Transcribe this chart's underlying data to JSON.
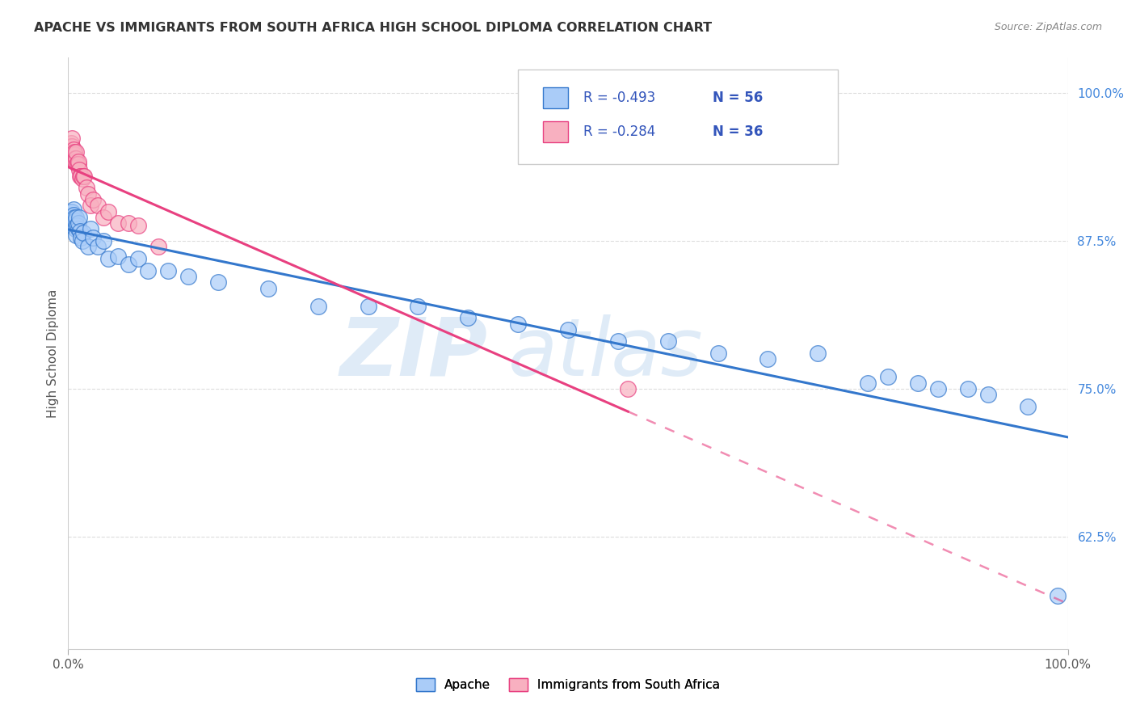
{
  "title": "APACHE VS IMMIGRANTS FROM SOUTH AFRICA HIGH SCHOOL DIPLOMA CORRELATION CHART",
  "source": "Source: ZipAtlas.com",
  "ylabel": "High School Diploma",
  "ytick_labels": [
    "100.0%",
    "87.5%",
    "75.0%",
    "62.5%"
  ],
  "ytick_values": [
    1.0,
    0.875,
    0.75,
    0.625
  ],
  "legend_label1": "Apache",
  "legend_label2": "Immigrants from South Africa",
  "legend_R1": "-0.493",
  "legend_N1": "56",
  "legend_R2": "-0.284",
  "legend_N2": "36",
  "color_apache": "#aaccf8",
  "color_sa": "#f8b0c0",
  "color_apache_line": "#3377cc",
  "color_sa_line": "#e84080",
  "watermark_zip": "ZIP",
  "watermark_atlas": "atlas",
  "apache_x": [
    0.001,
    0.002,
    0.002,
    0.003,
    0.003,
    0.004,
    0.004,
    0.005,
    0.005,
    0.006,
    0.006,
    0.007,
    0.007,
    0.008,
    0.008,
    0.009,
    0.01,
    0.01,
    0.011,
    0.012,
    0.013,
    0.014,
    0.015,
    0.02,
    0.022,
    0.025,
    0.03,
    0.035,
    0.04,
    0.05,
    0.06,
    0.07,
    0.08,
    0.1,
    0.12,
    0.15,
    0.2,
    0.25,
    0.3,
    0.35,
    0.4,
    0.45,
    0.5,
    0.55,
    0.6,
    0.65,
    0.7,
    0.75,
    0.8,
    0.82,
    0.85,
    0.87,
    0.9,
    0.92,
    0.96,
    0.99
  ],
  "apache_y": [
    0.895,
    0.89,
    0.9,
    0.893,
    0.888,
    0.895,
    0.9,
    0.902,
    0.897,
    0.89,
    0.895,
    0.885,
    0.892,
    0.88,
    0.895,
    0.888,
    0.885,
    0.89,
    0.895,
    0.883,
    0.878,
    0.875,
    0.882,
    0.87,
    0.885,
    0.878,
    0.87,
    0.875,
    0.86,
    0.862,
    0.855,
    0.86,
    0.85,
    0.85,
    0.845,
    0.84,
    0.835,
    0.82,
    0.82,
    0.82,
    0.81,
    0.805,
    0.8,
    0.79,
    0.79,
    0.78,
    0.775,
    0.78,
    0.755,
    0.76,
    0.755,
    0.75,
    0.75,
    0.745,
    0.735,
    0.575
  ],
  "sa_x": [
    0.001,
    0.002,
    0.002,
    0.003,
    0.003,
    0.004,
    0.004,
    0.005,
    0.005,
    0.006,
    0.006,
    0.007,
    0.007,
    0.008,
    0.008,
    0.009,
    0.01,
    0.01,
    0.011,
    0.012,
    0.013,
    0.014,
    0.015,
    0.016,
    0.018,
    0.02,
    0.022,
    0.025,
    0.03,
    0.035,
    0.04,
    0.05,
    0.06,
    0.07,
    0.09,
    0.56
  ],
  "sa_y": [
    0.95,
    0.95,
    0.955,
    0.955,
    0.958,
    0.955,
    0.962,
    0.948,
    0.952,
    0.948,
    0.95,
    0.945,
    0.942,
    0.945,
    0.95,
    0.94,
    0.94,
    0.942,
    0.935,
    0.93,
    0.93,
    0.928,
    0.93,
    0.93,
    0.92,
    0.915,
    0.905,
    0.91,
    0.905,
    0.895,
    0.9,
    0.89,
    0.89,
    0.888,
    0.87,
    0.75
  ],
  "xlim": [
    0.0,
    1.0
  ],
  "ylim": [
    0.53,
    1.03
  ]
}
